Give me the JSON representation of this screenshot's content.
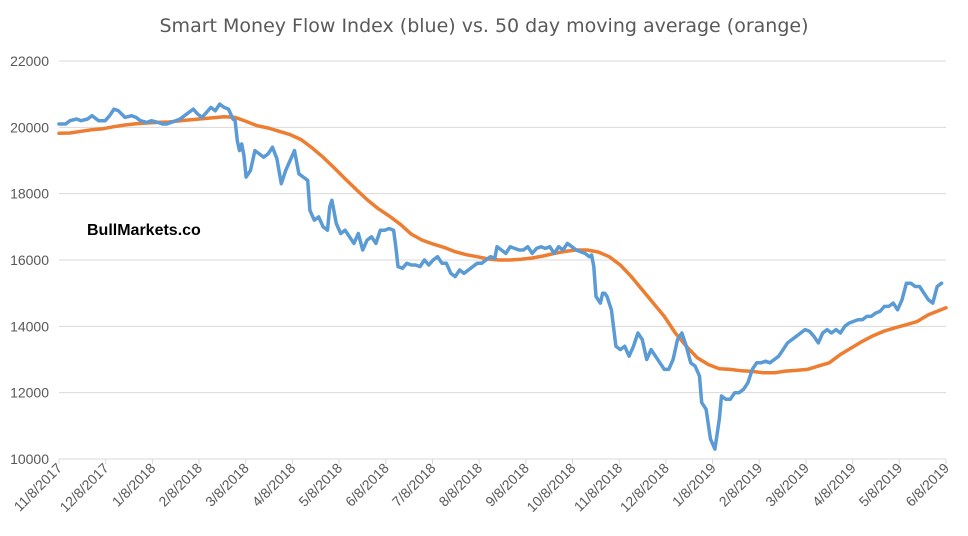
{
  "chart_data": {
    "type": "line",
    "title": "Smart Money Flow Index (blue) vs. 50 day moving average (orange)",
    "watermark": "BullMarkets.co",
    "xlabel": "",
    "ylabel": "",
    "ylim": [
      10000,
      22000
    ],
    "yticks": [
      "22000",
      "20000",
      "18000",
      "16000",
      "14000",
      "12000",
      "10000"
    ],
    "xticks": [
      "11/8/2017",
      "12/8/2017",
      "1/8/2018",
      "2/8/2018",
      "3/8/2018",
      "4/8/2018",
      "5/8/2018",
      "6/8/2018",
      "7/8/2018",
      "8/8/2018",
      "9/8/2018",
      "10/8/2018",
      "11/8/2018",
      "12/8/2018",
      "1/8/2019",
      "2/8/2019",
      "3/8/2019",
      "4/8/2019",
      "5/8/2019",
      "6/8/2019"
    ],
    "grid": true,
    "series": [
      {
        "color": "#5b9bd5",
        "points": [
          [
            0,
            20100
          ],
          [
            3,
            20100
          ],
          [
            5,
            20200
          ],
          [
            8,
            20250
          ],
          [
            10,
            20200
          ],
          [
            13,
            20250
          ],
          [
            15,
            20350
          ],
          [
            18,
            20200
          ],
          [
            21,
            20200
          ],
          [
            23,
            20350
          ],
          [
            25,
            20550
          ],
          [
            27,
            20500
          ],
          [
            30,
            20300
          ],
          [
            33,
            20350
          ],
          [
            35,
            20300
          ],
          [
            37,
            20200
          ],
          [
            40,
            20150
          ],
          [
            42,
            20200
          ],
          [
            45,
            20150
          ],
          [
            47,
            20100
          ],
          [
            49,
            20100
          ],
          [
            51,
            20150
          ],
          [
            53,
            20200
          ],
          [
            55,
            20250
          ],
          [
            57,
            20350
          ],
          [
            59,
            20450
          ],
          [
            61,
            20550
          ],
          [
            63,
            20400
          ],
          [
            65,
            20300
          ],
          [
            67,
            20450
          ],
          [
            69,
            20600
          ],
          [
            71,
            20500
          ],
          [
            73,
            20700
          ],
          [
            75,
            20600
          ],
          [
            77,
            20550
          ],
          [
            79,
            20250
          ],
          [
            80,
            20200
          ],
          [
            81,
            19600
          ],
          [
            82,
            19300
          ],
          [
            83,
            19500
          ],
          [
            84,
            19150
          ],
          [
            85,
            18500
          ],
          [
            87,
            18700
          ],
          [
            89,
            19300
          ],
          [
            91,
            19200
          ],
          [
            93,
            19100
          ],
          [
            95,
            19200
          ],
          [
            97,
            19400
          ],
          [
            99,
            19050
          ],
          [
            101,
            18300
          ],
          [
            103,
            18700
          ],
          [
            105,
            19000
          ],
          [
            107,
            19300
          ],
          [
            109,
            18600
          ],
          [
            111,
            18500
          ],
          [
            113,
            18400
          ],
          [
            114,
            17500
          ],
          [
            116,
            17200
          ],
          [
            118,
            17300
          ],
          [
            120,
            17000
          ],
          [
            122,
            16900
          ],
          [
            123,
            17600
          ],
          [
            124,
            17800
          ],
          [
            126,
            17100
          ],
          [
            128,
            16800
          ],
          [
            130,
            16900
          ],
          [
            132,
            16700
          ],
          [
            134,
            16500
          ],
          [
            136,
            16800
          ],
          [
            138,
            16300
          ],
          [
            140,
            16600
          ],
          [
            142,
            16700
          ],
          [
            144,
            16500
          ],
          [
            146,
            16900
          ],
          [
            148,
            16900
          ],
          [
            150,
            16950
          ],
          [
            152,
            16900
          ],
          [
            153,
            16400
          ],
          [
            154,
            15800
          ],
          [
            156,
            15750
          ],
          [
            158,
            15900
          ],
          [
            160,
            15850
          ],
          [
            162,
            15850
          ],
          [
            164,
            15800
          ],
          [
            166,
            16000
          ],
          [
            168,
            15850
          ],
          [
            170,
            16000
          ],
          [
            172,
            16100
          ],
          [
            174,
            15900
          ],
          [
            176,
            15900
          ],
          [
            178,
            15600
          ],
          [
            180,
            15500
          ],
          [
            182,
            15700
          ],
          [
            184,
            15600
          ],
          [
            186,
            15700
          ],
          [
            188,
            15800
          ],
          [
            190,
            15900
          ],
          [
            192,
            15900
          ],
          [
            194,
            16000
          ],
          [
            196,
            16100
          ],
          [
            198,
            16050
          ],
          [
            199,
            16400
          ],
          [
            201,
            16300
          ],
          [
            203,
            16200
          ],
          [
            205,
            16400
          ],
          [
            207,
            16350
          ],
          [
            209,
            16300
          ],
          [
            211,
            16300
          ],
          [
            213,
            16400
          ],
          [
            215,
            16200
          ],
          [
            217,
            16350
          ],
          [
            219,
            16400
          ],
          [
            221,
            16350
          ],
          [
            223,
            16400
          ],
          [
            225,
            16200
          ],
          [
            227,
            16400
          ],
          [
            229,
            16300
          ],
          [
            231,
            16500
          ],
          [
            233,
            16400
          ],
          [
            235,
            16300
          ],
          [
            237,
            16250
          ],
          [
            239,
            16200
          ],
          [
            241,
            16100
          ],
          [
            242,
            16150
          ],
          [
            243,
            15800
          ],
          [
            244,
            14900
          ],
          [
            246,
            14700
          ],
          [
            247,
            15000
          ],
          [
            248,
            15000
          ],
          [
            249,
            14900
          ],
          [
            251,
            14500
          ],
          [
            253,
            13400
          ],
          [
            255,
            13300
          ],
          [
            257,
            13400
          ],
          [
            259,
            13100
          ],
          [
            261,
            13400
          ],
          [
            263,
            13800
          ],
          [
            265,
            13600
          ],
          [
            267,
            13000
          ],
          [
            269,
            13300
          ],
          [
            271,
            13100
          ],
          [
            273,
            12900
          ],
          [
            275,
            12700
          ],
          [
            277,
            12700
          ],
          [
            279,
            13000
          ],
          [
            281,
            13600
          ],
          [
            283,
            13800
          ],
          [
            285,
            13400
          ],
          [
            287,
            12900
          ],
          [
            289,
            12800
          ],
          [
            291,
            12500
          ],
          [
            292,
            11700
          ],
          [
            294,
            11500
          ],
          [
            296,
            10600
          ],
          [
            298,
            10300
          ],
          [
            300,
            11200
          ],
          [
            301,
            11900
          ],
          [
            303,
            11800
          ],
          [
            305,
            11800
          ],
          [
            307,
            12000
          ],
          [
            309,
            12000
          ],
          [
            311,
            12100
          ],
          [
            313,
            12300
          ],
          [
            315,
            12700
          ],
          [
            317,
            12900
          ],
          [
            319,
            12900
          ],
          [
            321,
            12950
          ],
          [
            323,
            12900
          ],
          [
            325,
            13000
          ],
          [
            327,
            13100
          ],
          [
            329,
            13300
          ],
          [
            331,
            13500
          ],
          [
            333,
            13600
          ],
          [
            335,
            13700
          ],
          [
            337,
            13800
          ],
          [
            339,
            13900
          ],
          [
            341,
            13850
          ],
          [
            343,
            13700
          ],
          [
            345,
            13500
          ],
          [
            347,
            13800
          ],
          [
            349,
            13900
          ],
          [
            351,
            13800
          ],
          [
            353,
            13900
          ],
          [
            355,
            13800
          ],
          [
            357,
            14000
          ],
          [
            359,
            14100
          ],
          [
            361,
            14150
          ],
          [
            363,
            14200
          ],
          [
            365,
            14200
          ],
          [
            367,
            14300
          ],
          [
            369,
            14300
          ],
          [
            371,
            14400
          ],
          [
            373,
            14450
          ],
          [
            375,
            14600
          ],
          [
            377,
            14600
          ],
          [
            379,
            14700
          ],
          [
            381,
            14500
          ],
          [
            383,
            14800
          ],
          [
            385,
            15300
          ],
          [
            387,
            15300
          ],
          [
            389,
            15200
          ],
          [
            391,
            15200
          ],
          [
            393,
            15000
          ],
          [
            395,
            14800
          ],
          [
            397,
            14700
          ],
          [
            399,
            15200
          ],
          [
            401,
            15300
          ]
        ]
      },
      {
        "color": "#ed7d31",
        "points": [
          [
            0,
            19820
          ],
          [
            5,
            19830
          ],
          [
            10,
            19880
          ],
          [
            15,
            19930
          ],
          [
            20,
            19960
          ],
          [
            25,
            20020
          ],
          [
            30,
            20070
          ],
          [
            35,
            20110
          ],
          [
            40,
            20130
          ],
          [
            45,
            20150
          ],
          [
            50,
            20160
          ],
          [
            55,
            20200
          ],
          [
            60,
            20230
          ],
          [
            65,
            20260
          ],
          [
            70,
            20290
          ],
          [
            75,
            20320
          ],
          [
            80,
            20300
          ],
          [
            85,
            20180
          ],
          [
            90,
            20050
          ],
          [
            95,
            19980
          ],
          [
            100,
            19880
          ],
          [
            105,
            19780
          ],
          [
            110,
            19630
          ],
          [
            115,
            19380
          ],
          [
            120,
            19100
          ],
          [
            125,
            18780
          ],
          [
            130,
            18450
          ],
          [
            135,
            18130
          ],
          [
            140,
            17820
          ],
          [
            145,
            17550
          ],
          [
            150,
            17330
          ],
          [
            155,
            17080
          ],
          [
            160,
            16780
          ],
          [
            165,
            16600
          ],
          [
            170,
            16480
          ],
          [
            175,
            16380
          ],
          [
            180,
            16250
          ],
          [
            185,
            16160
          ],
          [
            190,
            16100
          ],
          [
            195,
            16030
          ],
          [
            200,
            16000
          ],
          [
            205,
            16000
          ],
          [
            210,
            16020
          ],
          [
            215,
            16060
          ],
          [
            220,
            16120
          ],
          [
            225,
            16200
          ],
          [
            230,
            16260
          ],
          [
            235,
            16300
          ],
          [
            240,
            16300
          ],
          [
            245,
            16240
          ],
          [
            250,
            16100
          ],
          [
            255,
            15850
          ],
          [
            260,
            15500
          ],
          [
            265,
            15100
          ],
          [
            270,
            14700
          ],
          [
            275,
            14300
          ],
          [
            280,
            13800
          ],
          [
            285,
            13400
          ],
          [
            290,
            13050
          ],
          [
            295,
            12850
          ],
          [
            300,
            12720
          ],
          [
            305,
            12700
          ],
          [
            310,
            12660
          ],
          [
            315,
            12640
          ],
          [
            320,
            12600
          ],
          [
            325,
            12600
          ],
          [
            330,
            12650
          ],
          [
            335,
            12670
          ],
          [
            340,
            12700
          ],
          [
            345,
            12800
          ],
          [
            350,
            12900
          ],
          [
            355,
            13150
          ],
          [
            360,
            13350
          ],
          [
            365,
            13550
          ],
          [
            370,
            13720
          ],
          [
            375,
            13860
          ],
          [
            380,
            13960
          ],
          [
            385,
            14050
          ],
          [
            390,
            14150
          ],
          [
            395,
            14350
          ],
          [
            400,
            14480
          ],
          [
            403,
            14560
          ]
        ]
      }
    ]
  }
}
